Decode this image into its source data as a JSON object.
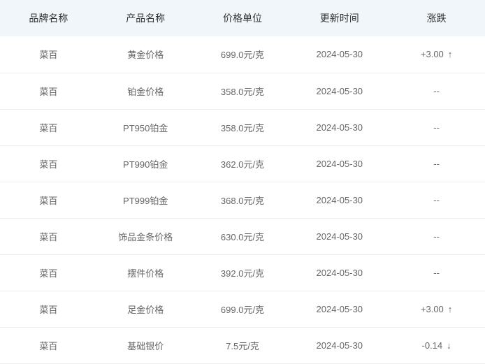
{
  "columns": [
    {
      "key": "brand",
      "label": "品牌名称"
    },
    {
      "key": "product",
      "label": "产品名称"
    },
    {
      "key": "price",
      "label": "价格单位"
    },
    {
      "key": "updated",
      "label": "更新时间"
    },
    {
      "key": "change",
      "label": "涨跌"
    }
  ],
  "colors": {
    "header_bg": "#f1f6fa",
    "header_text": "#333333",
    "cell_text": "#666666",
    "border": "#eeeeee",
    "up": "#ff0000",
    "down": "#008000",
    "none": "#666666"
  },
  "arrows": {
    "up": "↑",
    "down": "↓"
  },
  "none_text": "--",
  "rows": [
    {
      "brand": "菜百",
      "product": "黄金价格",
      "price": "699.0元/克",
      "updated": "2024-05-30",
      "change_text": "+3.00",
      "direction": "up"
    },
    {
      "brand": "菜百",
      "product": "铂金价格",
      "price": "358.0元/克",
      "updated": "2024-05-30",
      "change_text": "",
      "direction": "none"
    },
    {
      "brand": "菜百",
      "product": "PT950铂金",
      "price": "358.0元/克",
      "updated": "2024-05-30",
      "change_text": "",
      "direction": "none"
    },
    {
      "brand": "菜百",
      "product": "PT990铂金",
      "price": "362.0元/克",
      "updated": "2024-05-30",
      "change_text": "",
      "direction": "none"
    },
    {
      "brand": "菜百",
      "product": "PT999铂金",
      "price": "368.0元/克",
      "updated": "2024-05-30",
      "change_text": "",
      "direction": "none"
    },
    {
      "brand": "菜百",
      "product": "饰品金条价格",
      "price": "630.0元/克",
      "updated": "2024-05-30",
      "change_text": "",
      "direction": "none"
    },
    {
      "brand": "菜百",
      "product": "摆件价格",
      "price": "392.0元/克",
      "updated": "2024-05-30",
      "change_text": "",
      "direction": "none"
    },
    {
      "brand": "菜百",
      "product": "足金价格",
      "price": "699.0元/克",
      "updated": "2024-05-30",
      "change_text": "+3.00",
      "direction": "up"
    },
    {
      "brand": "菜百",
      "product": "基础银价",
      "price": "7.5元/克",
      "updated": "2024-05-30",
      "change_text": "-0.14",
      "direction": "down"
    }
  ]
}
